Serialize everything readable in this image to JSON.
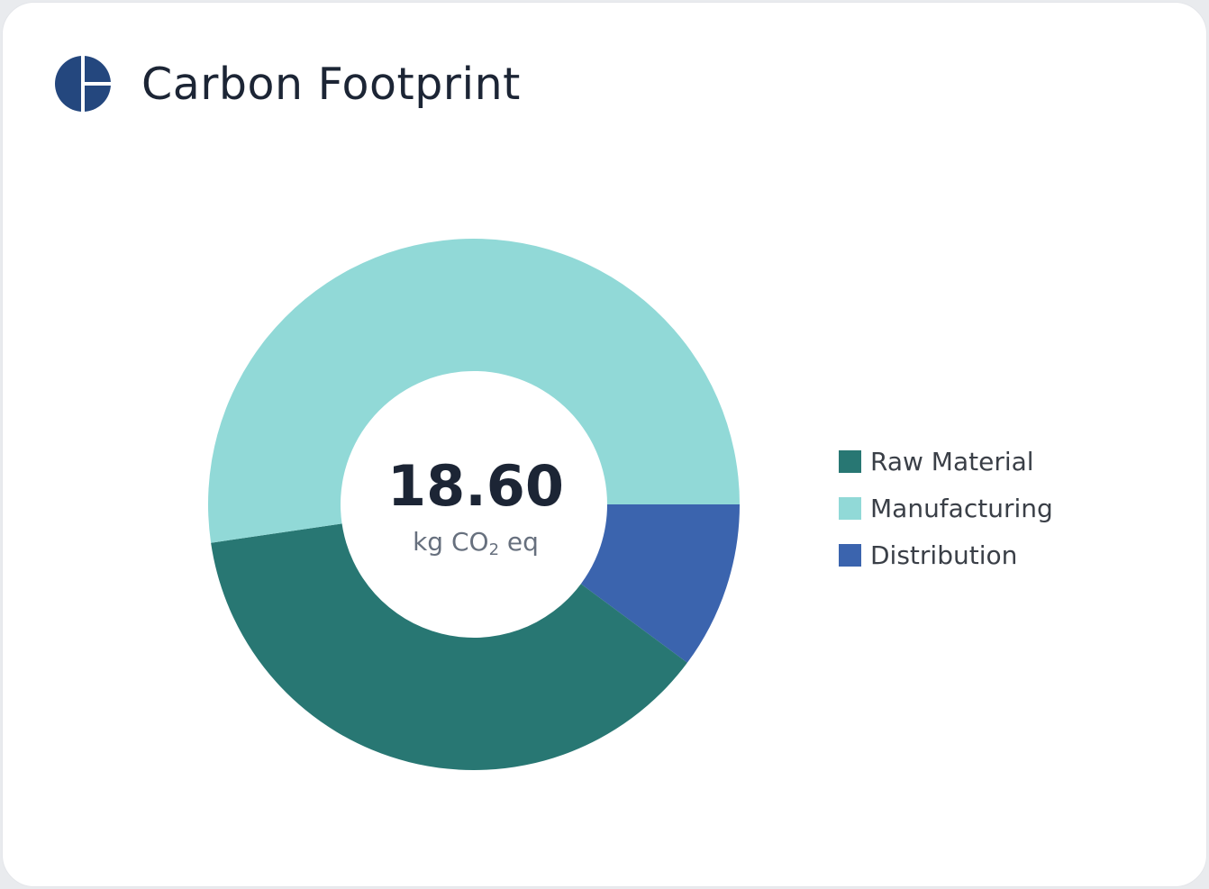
{
  "header": {
    "title": "Carbon Footprint",
    "logo_icon": "carbon-footprint-logo-icon",
    "logo_color": "#24477e"
  },
  "chart_data": {
    "type": "pie",
    "variant": "donut",
    "title": "Carbon Footprint",
    "total": {
      "value": "18.60",
      "unit_prefix": "kg CO",
      "unit_subscript": "2",
      "unit_suffix": " eq"
    },
    "legend_position": "right",
    "series": [
      {
        "name": "Raw Material",
        "value": 6.98,
        "color": "#287773"
      },
      {
        "name": "Manufacturing",
        "value": 9.73,
        "color": "#91d9d7"
      },
      {
        "name": "Distribution",
        "value": 1.89,
        "color": "#3b64ae"
      }
    ],
    "draw_order": [
      "Distribution",
      "Raw Material",
      "Manufacturing"
    ],
    "start_angle_deg": 0,
    "direction": "clockwise"
  }
}
